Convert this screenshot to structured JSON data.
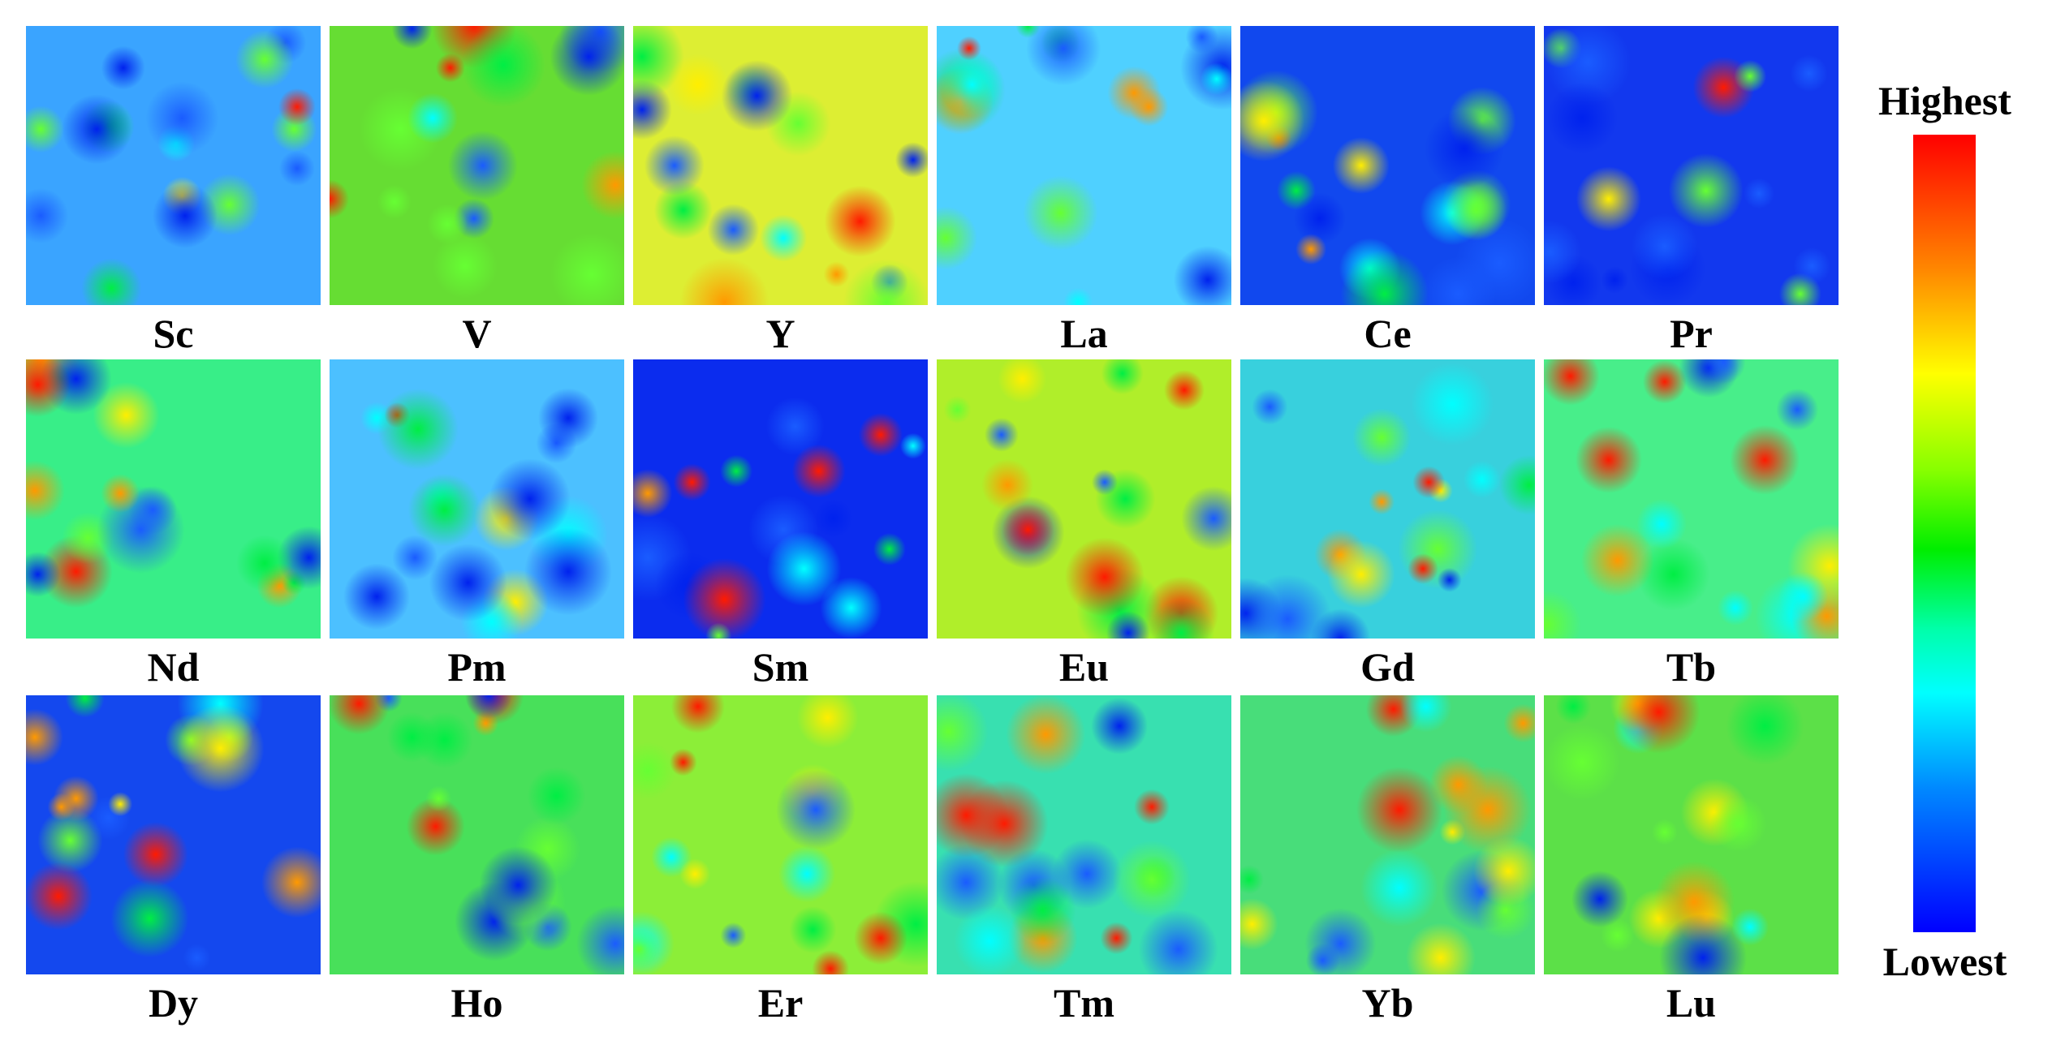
{
  "panels": [
    "Sc",
    "V",
    "Y",
    "La",
    "Ce",
    "Pr",
    "Nd",
    "Pm",
    "Sm",
    "Eu",
    "Gd",
    "Tb",
    "Dy",
    "Ho",
    "Er",
    "Tm",
    "Yb",
    "Lu"
  ],
  "colorbar": {
    "high": "Highest",
    "low": "Lowest"
  }
}
